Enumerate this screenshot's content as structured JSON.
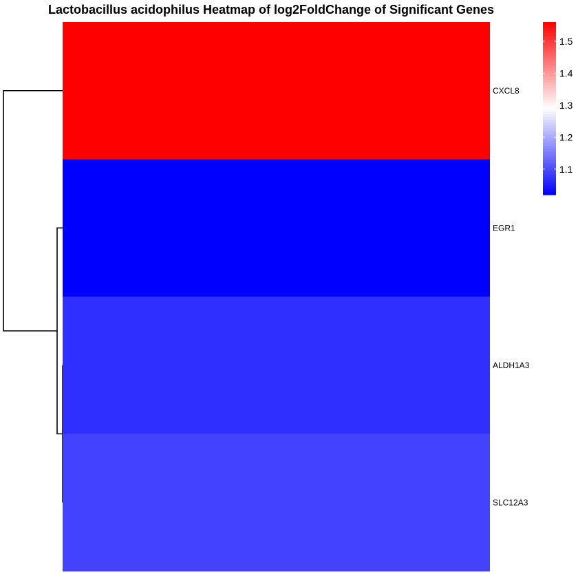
{
  "chart_data": {
    "type": "heatmap",
    "title": "Lactobacillus acidophilus Heatmap of log2FoldChange of Significant Genes",
    "rows": [
      "CXCL8",
      "EGR1",
      "ALDH1A3",
      "SLC12A3"
    ],
    "values": [
      1.56,
      1.02,
      1.07,
      1.09
    ],
    "colorbar": {
      "min": 1.02,
      "max": 1.56,
      "ticks": [
        1.1,
        1.2,
        1.3,
        1.4,
        1.5
      ],
      "tick_labels": [
        "1.1",
        "1.2",
        "1.3",
        "1.4",
        "1.5"
      ],
      "low_color": "#0000ff",
      "mid_color": "#ffffff",
      "high_color": "#ff0000"
    },
    "row_dendrogram": true,
    "legend_position": "right"
  }
}
